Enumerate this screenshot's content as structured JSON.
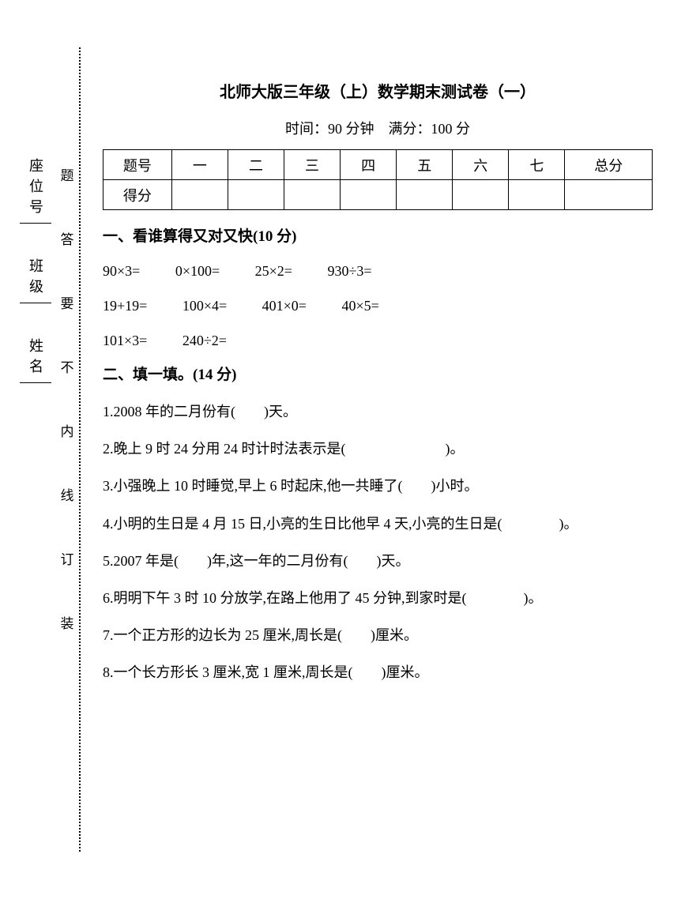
{
  "title": "北师大版三年级（上）数学期末测试卷（一）",
  "subtitle": "时间：90 分钟　满分：100 分",
  "table": {
    "row1": [
      "题号",
      "一",
      "二",
      "三",
      "四",
      "五",
      "六",
      "七",
      "总分"
    ],
    "row2_label": "得分"
  },
  "section1": {
    "title": "一、看谁算得又对又快(10 分)",
    "rows": [
      [
        "90×3=",
        "0×100=",
        "25×2=",
        "930÷3="
      ],
      [
        "19+19=",
        "100×4=",
        "401×0=",
        "40×5="
      ],
      [
        "101×3=",
        "240÷2="
      ]
    ]
  },
  "section2": {
    "title": "二、填一填。(14 分)",
    "questions": [
      "1.2008 年的二月份有(　　)天。",
      "2.晚上 9 时 24 分用 24 时计时法表示是(　　　　　　　)。",
      "3.小强晚上 10 时睡觉,早上 6 时起床,他一共睡了(　　)小时。",
      "4.小明的生日是 4 月 15 日,小亮的生日比他早 4 天,小亮的生日是(　　　　)。",
      "5.2007 年是(　　)年,这一年的二月份有(　　)天。",
      "6.明明下午 3 时 10 分放学,在路上他用了 45 分钟,到家时是(　　　　)。",
      "7.一个正方形的边长为 25 厘米,周长是(　　)厘米。",
      "8.一个长方形长 3 厘米,宽 1 厘米,周长是(　　)厘米。"
    ]
  },
  "sidebar": {
    "fields": [
      "座位号",
      "班级",
      "姓名"
    ],
    "annotations": [
      "题",
      "答",
      "要",
      "不",
      "内",
      "线",
      "订",
      "装"
    ]
  }
}
